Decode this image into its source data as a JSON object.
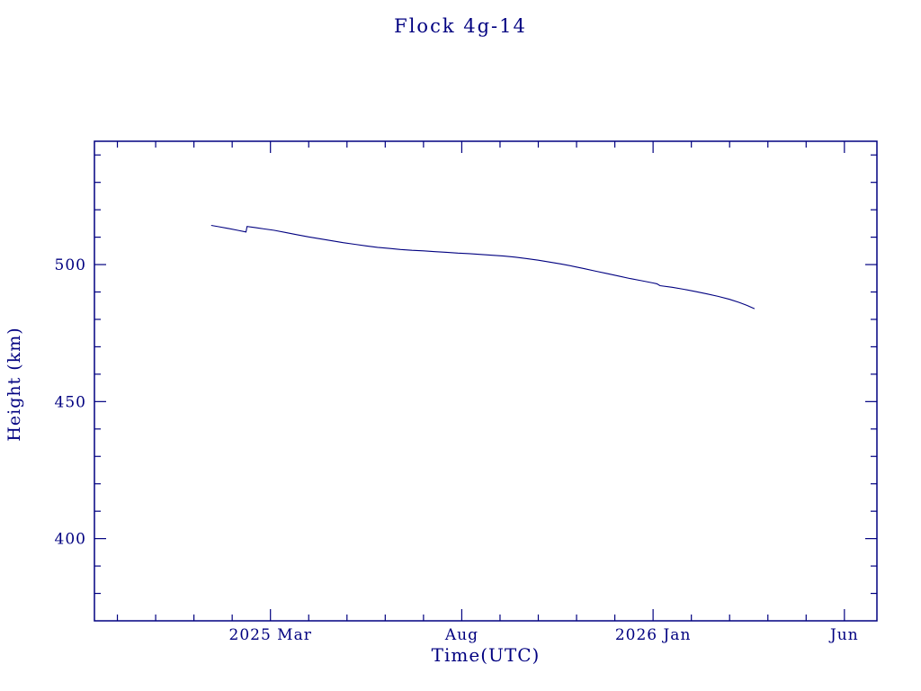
{
  "page": {
    "background": "#ffffff",
    "accent_color": "#000080"
  },
  "chart_data": {
    "type": "line",
    "title": "Flock 4g-14",
    "xlabel": "Time(UTC)",
    "ylabel": "Height (km)",
    "grid": false,
    "legend": "none",
    "x_axis_note": "x values are months relative to 2025-01-01",
    "xlim": [
      -2.6,
      17.85
    ],
    "ylim": [
      370,
      545
    ],
    "x_major_ticks": [
      {
        "value": 2,
        "label": "2025 Mar"
      },
      {
        "value": 7,
        "label": "Aug"
      },
      {
        "value": 12,
        "label": "2026 Jan"
      },
      {
        "value": 17,
        "label": "Jun"
      }
    ],
    "x_minor_step": 1,
    "y_major_ticks": [
      {
        "value": 400,
        "label": "400"
      },
      {
        "value": 450,
        "label": "450"
      },
      {
        "value": 500,
        "label": "500"
      }
    ],
    "y_minor_step": 10,
    "frame_color": "#000080",
    "line_color": "#000080",
    "series": [
      {
        "name": "Flock 4g-14 height",
        "points": [
          [
            0.45,
            514.3
          ],
          [
            0.65,
            513.8
          ],
          [
            0.9,
            513.2
          ],
          [
            1.15,
            512.5
          ],
          [
            1.36,
            511.9
          ],
          [
            1.39,
            513.9
          ],
          [
            1.6,
            513.5
          ],
          [
            1.85,
            513.0
          ],
          [
            2.1,
            512.5
          ],
          [
            2.4,
            511.7
          ],
          [
            2.7,
            510.9
          ],
          [
            3.0,
            510.1
          ],
          [
            3.3,
            509.4
          ],
          [
            3.6,
            508.7
          ],
          [
            3.9,
            508.0
          ],
          [
            4.2,
            507.4
          ],
          [
            4.5,
            506.8
          ],
          [
            4.8,
            506.3
          ],
          [
            5.1,
            505.9
          ],
          [
            5.4,
            505.5
          ],
          [
            5.7,
            505.2
          ],
          [
            6.0,
            505.0
          ],
          [
            6.3,
            504.7
          ],
          [
            6.6,
            504.5
          ],
          [
            6.9,
            504.2
          ],
          [
            7.2,
            504.0
          ],
          [
            7.5,
            503.7
          ],
          [
            7.8,
            503.4
          ],
          [
            8.1,
            503.1
          ],
          [
            8.4,
            502.7
          ],
          [
            8.7,
            502.2
          ],
          [
            9.0,
            501.6
          ],
          [
            9.3,
            500.9
          ],
          [
            9.6,
            500.2
          ],
          [
            9.9,
            499.4
          ],
          [
            10.2,
            498.5
          ],
          [
            10.5,
            497.6
          ],
          [
            10.8,
            496.7
          ],
          [
            11.1,
            495.8
          ],
          [
            11.4,
            494.9
          ],
          [
            11.7,
            494.1
          ],
          [
            12.0,
            493.3
          ],
          [
            12.1,
            493.0
          ],
          [
            12.18,
            492.3
          ],
          [
            12.5,
            491.7
          ],
          [
            12.8,
            491.0
          ],
          [
            13.1,
            490.2
          ],
          [
            13.4,
            489.3
          ],
          [
            13.7,
            488.4
          ],
          [
            14.0,
            487.3
          ],
          [
            14.25,
            486.2
          ],
          [
            14.45,
            485.1
          ],
          [
            14.65,
            483.9
          ]
        ]
      }
    ]
  }
}
